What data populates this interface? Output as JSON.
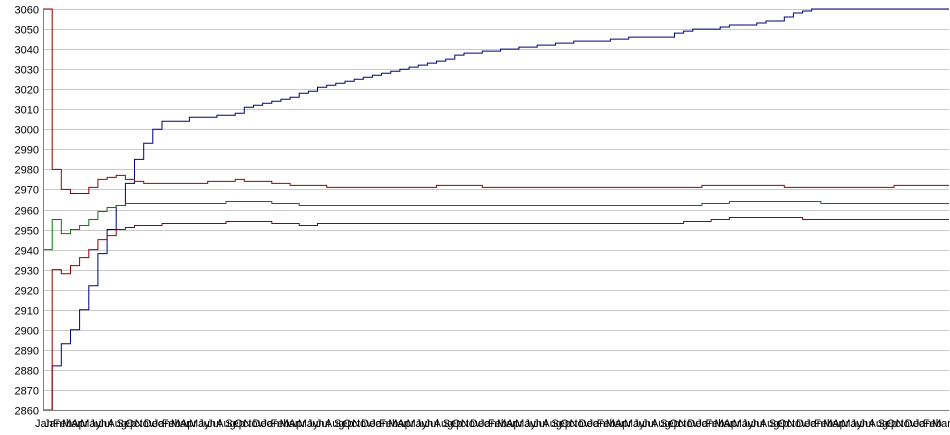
{
  "chart_data": {
    "type": "line",
    "title": "",
    "xlabel": "",
    "ylabel": "",
    "ylim": [
      2860,
      3060
    ],
    "yticks": [
      2860,
      2870,
      2880,
      2890,
      2900,
      2910,
      2920,
      2930,
      2940,
      2950,
      2960,
      2970,
      2980,
      2990,
      3000,
      3010,
      3020,
      3030,
      3040,
      3050,
      3060
    ],
    "grid": true,
    "legend": "none",
    "x_count": 100,
    "x_tick_labels_note_visible_text": "Jan",
    "x_tick_labels": [
      "Jan",
      "Jan",
      "Feb",
      "Mar",
      "Apr",
      "May",
      "Jun",
      "Jul",
      "Aug",
      "Sep",
      "Oct",
      "Nov",
      "Dec",
      "Jan",
      "Feb",
      "Mar",
      "Apr",
      "May",
      "Jun",
      "Jul",
      "Aug",
      "Sep",
      "Oct",
      "Nov",
      "Dec",
      "Jan",
      "Feb",
      "Mar",
      "Apr",
      "May",
      "Jun",
      "Jul",
      "Aug",
      "Sep",
      "Oct",
      "Nov",
      "Dec",
      "Jan",
      "Feb",
      "Mar",
      "Apr",
      "May",
      "Jun",
      "Jul",
      "Aug",
      "Sep",
      "Oct",
      "Nov",
      "Dec",
      "Jan",
      "Feb",
      "Mar",
      "Apr",
      "May",
      "Jun",
      "Jul",
      "Aug",
      "Sep",
      "Oct",
      "Nov",
      "Dec",
      "Jan",
      "Feb",
      "Mar",
      "Apr",
      "May",
      "Jun",
      "Jul",
      "Aug",
      "Sep",
      "Oct",
      "Nov",
      "Dec",
      "Jan",
      "Feb",
      "Mar",
      "Apr",
      "May",
      "Jun",
      "Jul",
      "Aug",
      "Sep",
      "Oct",
      "Nov",
      "Dec",
      "Jan",
      "Feb",
      "Mar",
      "Apr",
      "May",
      "Jun",
      "Jul",
      "Aug",
      "Sep",
      "Oct",
      "Nov",
      "Dec",
      "Jan",
      "Feb",
      "Mar"
    ],
    "series": [
      {
        "color": "#00007f",
        "values": [
          2860,
          2882,
          2893,
          2900,
          2910,
          2922,
          2938,
          2950,
          2962,
          2973,
          2985,
          2993,
          3000,
          3004,
          3004,
          3004,
          3006,
          3006,
          3006,
          3007,
          3007,
          3008,
          3011,
          3012,
          3013,
          3014,
          3015,
          3016,
          3018,
          3019,
          3021,
          3022,
          3023,
          3024,
          3025,
          3026,
          3027,
          3028,
          3029,
          3030,
          3031,
          3032,
          3033,
          3034,
          3035,
          3037,
          3038,
          3038,
          3039,
          3039,
          3040,
          3040,
          3041,
          3041,
          3042,
          3042,
          3043,
          3043,
          3044,
          3044,
          3044,
          3044,
          3045,
          3045,
          3046,
          3046,
          3046,
          3046,
          3046,
          3048,
          3049,
          3050,
          3050,
          3050,
          3051,
          3052,
          3052,
          3052,
          3053,
          3054,
          3054,
          3056,
          3058,
          3059,
          3060,
          3060,
          3060,
          3060,
          3060,
          3060,
          3060,
          3060,
          3060,
          3060,
          3060,
          3060,
          3060,
          3060,
          3060,
          3060
        ]
      },
      {
        "color": "#9a0000",
        "values": [
          3060,
          2980,
          2970,
          2968,
          2968,
          2971,
          2975,
          2976,
          2977,
          2975,
          2974,
          2973,
          2973,
          2973,
          2973,
          2973,
          2973,
          2973,
          2974,
          2974,
          2974,
          2975,
          2974,
          2974,
          2974,
          2973,
          2973,
          2972,
          2972,
          2972,
          2972,
          2971,
          2971,
          2971,
          2971,
          2971,
          2971,
          2971,
          2971,
          2971,
          2971,
          2971,
          2971,
          2972,
          2972,
          2972,
          2972,
          2972,
          2971,
          2971,
          2971,
          2971,
          2971,
          2971,
          2971,
          2971,
          2971,
          2971,
          2971,
          2971,
          2971,
          2971,
          2971,
          2971,
          2971,
          2971,
          2971,
          2971,
          2971,
          2971,
          2971,
          2971,
          2972,
          2972,
          2972,
          2972,
          2972,
          2972,
          2972,
          2972,
          2972,
          2971,
          2971,
          2971,
          2971,
          2971,
          2971,
          2971,
          2971,
          2971,
          2971,
          2971,
          2971,
          2972,
          2972,
          2972,
          2972,
          2972,
          2972,
          2972
        ]
      },
      {
        "color": "#008000",
        "values": [
          2940,
          2955,
          2948,
          2950,
          2952,
          2955,
          2959,
          2961,
          2962,
          2963,
          2963,
          2963,
          2963,
          2963,
          2963,
          2963,
          2963,
          2963,
          2963,
          2963,
          2964,
          2964,
          2964,
          2964,
          2964,
          2963,
          2963,
          2963,
          2962,
          2962,
          2962,
          2962,
          2962,
          2962,
          2962,
          2962,
          2962,
          2962,
          2962,
          2962,
          2962,
          2962,
          2962,
          2962,
          2962,
          2962,
          2962,
          2962,
          2962,
          2962,
          2962,
          2962,
          2962,
          2962,
          2962,
          2962,
          2962,
          2962,
          2962,
          2962,
          2962,
          2962,
          2962,
          2962,
          2962,
          2962,
          2962,
          2962,
          2962,
          2962,
          2962,
          2962,
          2963,
          2963,
          2963,
          2964,
          2964,
          2964,
          2964,
          2964,
          2964,
          2964,
          2964,
          2964,
          2964,
          2963,
          2963,
          2963,
          2963,
          2963,
          2963,
          2963,
          2963,
          2963,
          2963,
          2963,
          2963,
          2963,
          2963,
          2963
        ]
      },
      {
        "color": "#9a0000",
        "values": [
          2860,
          2930,
          2928,
          2932,
          2936,
          2940,
          2945,
          2947,
          2950,
          2951,
          2952,
          2952,
          2952,
          2953,
          2953,
          2953,
          2953,
          2953,
          2953,
          2953,
          2954,
          2954,
          2954,
          2954,
          2954,
          2953,
          2953,
          2953,
          2952,
          2952,
          2953,
          2953,
          2953,
          2953,
          2953,
          2953,
          2953,
          2953,
          2953,
          2953,
          2953,
          2953,
          2953,
          2953,
          2953,
          2953,
          2953,
          2953,
          2953,
          2953,
          2953,
          2953,
          2953,
          2953,
          2953,
          2953,
          2953,
          2953,
          2953,
          2953,
          2953,
          2953,
          2953,
          2953,
          2953,
          2953,
          2953,
          2953,
          2953,
          2953,
          2954,
          2954,
          2954,
          2955,
          2955,
          2956,
          2956,
          2956,
          2956,
          2956,
          2956,
          2956,
          2956,
          2955,
          2955,
          2955,
          2955,
          2955,
          2955,
          2955,
          2955,
          2955,
          2955,
          2955,
          2955,
          2955,
          2955,
          2955,
          2955,
          2955
        ]
      }
    ]
  }
}
